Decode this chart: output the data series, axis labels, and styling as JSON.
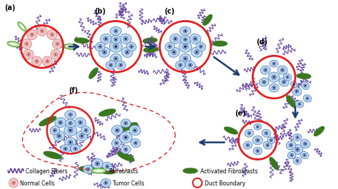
{
  "background_color": "#ffffff",
  "labels": {
    "a": "(a)",
    "b": "(b)",
    "c": "(c)",
    "d": "(d)",
    "e": "(e)",
    "f": "(f)"
  },
  "arrow_color": "#1a3a6e",
  "duct_boundary_color": "#e02020",
  "tumor_cell_fill": "#c0d8f0",
  "tumor_cell_outline": "#5888b8",
  "normal_cell_fill": "#f5c8c8",
  "normal_cell_outline": "#d08080",
  "collagen_color": "#6040a0",
  "fibroblast_outline_color": "#50aa30",
  "fibroblast_filled_color": "#3a7820",
  "dashed_boundary_color": "#e02020",
  "nucleus_color": "#1a3060",
  "nucleus_ring_color": "#3050a0"
}
